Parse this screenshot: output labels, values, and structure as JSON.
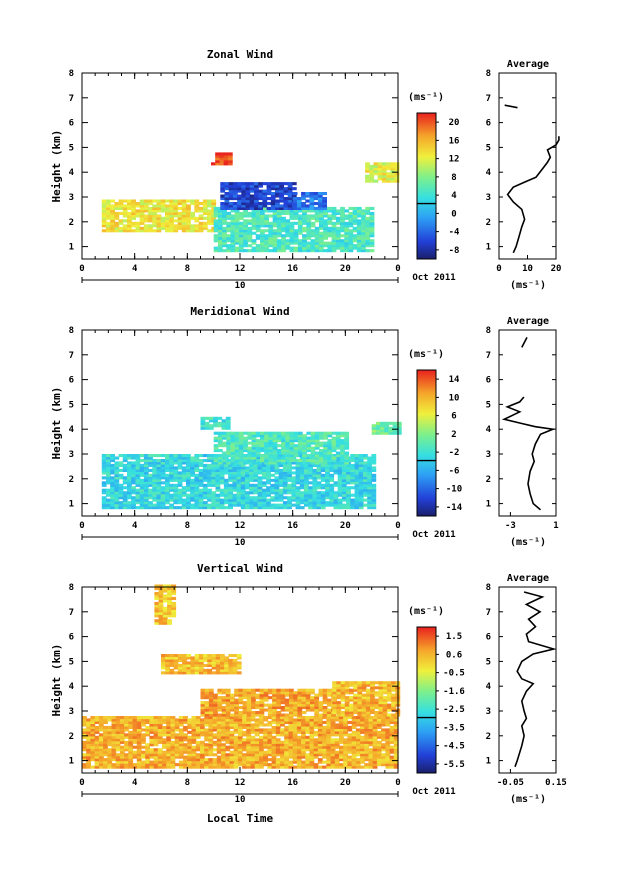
{
  "figure": {
    "date_label": "Oct 2011",
    "day_label": "10",
    "xlabel": "Local Time",
    "ylabel": "Height (km)",
    "unit_label": "(ms⁻¹)",
    "average_title": "Average"
  },
  "chart_data": [
    {
      "type": "heatmap",
      "title": "Zonal Wind",
      "xlabel": "",
      "ylabel": "Height (km)",
      "xlim": [
        0,
        24
      ],
      "ylim": [
        0.5,
        8
      ],
      "xticks": [
        "0",
        "4",
        "8",
        "12",
        "16",
        "20",
        "0"
      ],
      "yticks": [
        "1",
        "2",
        "3",
        "4",
        "5",
        "6",
        "7",
        "8"
      ],
      "colorbar": {
        "unit": "(ms⁻¹)",
        "min": -10,
        "max": 22,
        "ticks": [
          "20",
          "16",
          "12",
          "8",
          "4",
          "0",
          "-4",
          "-8"
        ]
      },
      "regions": [
        {
          "x": [
            1.5,
            10
          ],
          "y": [
            1.6,
            2.9
          ],
          "value": 13
        },
        {
          "x": [
            10,
            22
          ],
          "y": [
            0.8,
            2.6
          ],
          "value": 5
        },
        {
          "x": [
            10.5,
            16
          ],
          "y": [
            2.5,
            3.6
          ],
          "value": -6
        },
        {
          "x": [
            16,
            18.5
          ],
          "y": [
            2.5,
            3.2
          ],
          "value": -3
        },
        {
          "x": [
            9.8,
            11.2
          ],
          "y": [
            4.3,
            4.7
          ],
          "value": 20
        },
        {
          "x": [
            21.5,
            24
          ],
          "y": [
            3.6,
            4.3
          ],
          "value": 12
        }
      ],
      "average": {
        "title": "Average",
        "xlabel": "(ms⁻¹)",
        "xlim": [
          0,
          20
        ],
        "xticks": [
          "0",
          "10",
          "20"
        ],
        "ylim": [
          0.5,
          8
        ],
        "profile": [
          [
            5,
            0.75
          ],
          [
            6,
            1.0
          ],
          [
            7,
            1.4
          ],
          [
            8,
            1.8
          ],
          [
            9,
            2.1
          ],
          [
            8,
            2.5
          ],
          [
            5,
            2.8
          ],
          [
            3,
            3.1
          ],
          [
            5,
            3.4
          ],
          [
            9,
            3.6
          ],
          [
            13,
            3.8
          ],
          [
            15,
            4.1
          ],
          [
            17,
            4.4
          ],
          [
            18,
            4.6
          ],
          [
            17,
            4.9
          ],
          [
            20,
            5.1
          ],
          [
            21,
            5.3
          ],
          [
            21,
            5.45
          ]
        ],
        "profile_upper": [
          [
            2,
            6.7
          ],
          [
            6.5,
            6.6
          ]
        ]
      }
    },
    {
      "type": "heatmap",
      "title": "Meridional Wind",
      "xlabel": "",
      "ylabel": "Height (km)",
      "xlim": [
        0,
        24
      ],
      "ylim": [
        0.5,
        8
      ],
      "xticks": [
        "0",
        "4",
        "8",
        "12",
        "16",
        "20",
        "0"
      ],
      "yticks": [
        "1",
        "2",
        "3",
        "4",
        "5",
        "6",
        "7",
        "8"
      ],
      "colorbar": {
        "unit": "(ms⁻¹)",
        "min": -16,
        "max": 16,
        "ticks": [
          "14",
          "10",
          "6",
          "2",
          "-2",
          "-6",
          "-10",
          "-14"
        ]
      },
      "regions": [
        {
          "x": [
            1.5,
            22
          ],
          "y": [
            0.8,
            3.0
          ],
          "value": -3
        },
        {
          "x": [
            10,
            20
          ],
          "y": [
            2.6,
            3.9
          ],
          "value": -1
        },
        {
          "x": [
            9,
            11
          ],
          "y": [
            4.0,
            4.4
          ],
          "value": -2
        },
        {
          "x": [
            22,
            24
          ],
          "y": [
            3.8,
            4.2
          ],
          "value": 1
        }
      ],
      "average": {
        "title": "Average",
        "xlabel": "(ms⁻¹)",
        "xlim": [
          -4,
          1.5
        ],
        "xticks": [
          "-3",
          "1"
        ],
        "ylim": [
          0.5,
          8
        ],
        "profile": [
          [
            0.0,
            0.75
          ],
          [
            -0.7,
            1.0
          ],
          [
            -1.0,
            1.4
          ],
          [
            -1.2,
            1.8
          ],
          [
            -1.0,
            2.3
          ],
          [
            -0.6,
            2.7
          ],
          [
            -0.8,
            3.0
          ],
          [
            -0.5,
            3.4
          ],
          [
            0.0,
            3.8
          ],
          [
            1.2,
            4.0
          ],
          [
            -0.5,
            4.1
          ],
          [
            -2.0,
            4.25
          ],
          [
            -3.5,
            4.4
          ],
          [
            -2.0,
            4.7
          ],
          [
            -3.2,
            4.9
          ],
          [
            -2.0,
            5.1
          ],
          [
            -1.6,
            5.3
          ]
        ],
        "profile_upper": [
          [
            -1.8,
            7.3
          ],
          [
            -1.3,
            7.7
          ]
        ]
      }
    },
    {
      "type": "heatmap",
      "title": "Vertical Wind",
      "xlabel": "Local Time",
      "ylabel": "Height (km)",
      "xlim": [
        0,
        24
      ],
      "ylim": [
        0.5,
        8
      ],
      "xticks": [
        "0",
        "4",
        "8",
        "12",
        "16",
        "20",
        "0"
      ],
      "yticks": [
        "1",
        "2",
        "3",
        "4",
        "5",
        "6",
        "7",
        "8"
      ],
      "colorbar": {
        "unit": "(ms⁻¹)",
        "min": -6,
        "max": 2,
        "ticks": [
          "1.5",
          "0.6",
          "-0.5",
          "-1.6",
          "-2.5",
          "-3.5",
          "-4.5",
          "-5.5"
        ]
      },
      "regions": [
        {
          "x": [
            0,
            24
          ],
          "y": [
            0.7,
            2.8
          ],
          "value": 0.5
        },
        {
          "x": [
            9,
            19
          ],
          "y": [
            2.8,
            3.9
          ],
          "value": 0.6
        },
        {
          "x": [
            19,
            24
          ],
          "y": [
            2.8,
            4.2
          ],
          "value": 0.4
        },
        {
          "x": [
            6,
            12
          ],
          "y": [
            4.5,
            5.2
          ],
          "value": 0.3
        },
        {
          "x": [
            5.5,
            7
          ],
          "y": [
            6.5,
            8
          ],
          "value": 0.2
        }
      ],
      "average": {
        "title": "Average",
        "xlabel": "(ms⁻¹)",
        "xlim": [
          -0.1,
          0.15
        ],
        "xticks": [
          "-0.05",
          "0.15"
        ],
        "ylim": [
          0.5,
          8
        ],
        "profile": [
          [
            -0.03,
            0.75
          ],
          [
            -0.02,
            1.0
          ],
          [
            -0.01,
            1.3
          ],
          [
            0.0,
            1.6
          ],
          [
            0.01,
            2.0
          ],
          [
            0.0,
            2.4
          ],
          [
            0.02,
            2.7
          ],
          [
            0.01,
            3.0
          ],
          [
            0.0,
            3.4
          ],
          [
            0.02,
            3.8
          ],
          [
            0.05,
            4.1
          ],
          [
            0.0,
            4.3
          ],
          [
            -0.02,
            4.6
          ],
          [
            0.0,
            5.0
          ],
          [
            0.05,
            5.3
          ],
          [
            0.14,
            5.5
          ],
          [
            0.03,
            5.8
          ],
          [
            0.02,
            6.1
          ],
          [
            0.06,
            6.4
          ],
          [
            0.03,
            6.7
          ],
          [
            0.08,
            7.0
          ],
          [
            0.02,
            7.3
          ],
          [
            0.09,
            7.6
          ],
          [
            0.01,
            7.8
          ]
        ],
        "profile_upper": []
      }
    }
  ]
}
